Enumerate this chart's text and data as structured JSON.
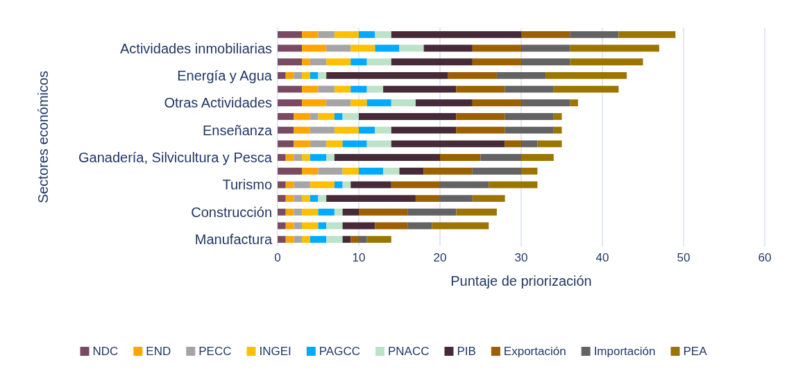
{
  "chart_data": {
    "type": "bar",
    "orientation": "horizontal",
    "stacked": true,
    "xlabel": "Puntaje de priorización",
    "ylabel": "Sectores económicos",
    "categories": [
      null,
      "Actividades inmobiliarias",
      null,
      "Energía y Agua",
      null,
      "Otras Actividades",
      null,
      "Enseñanza",
      null,
      "Ganadería, Silvicultura y Pesca",
      null,
      "Turismo",
      null,
      "Construcción",
      null,
      "Manufactura"
    ],
    "series": [
      {
        "name": "NDC",
        "color": "#7a4a62",
        "values": [
          3,
          3,
          3,
          1,
          3,
          3,
          2,
          2,
          2,
          1,
          3,
          1,
          1,
          1,
          1,
          1
        ]
      },
      {
        "name": "END",
        "color": "#ffa500",
        "values": [
          2,
          3,
          1,
          1,
          2,
          3,
          2,
          2,
          2,
          1,
          2,
          1,
          1,
          1,
          1,
          1
        ]
      },
      {
        "name": "PECC",
        "color": "#a5a5a5",
        "values": [
          2,
          3,
          2,
          1,
          2,
          3,
          1,
          3,
          2,
          1,
          3,
          2,
          1,
          1,
          1,
          1
        ]
      },
      {
        "name": "INGEI",
        "color": "#ffc000",
        "values": [
          3,
          3,
          3,
          1,
          2,
          2,
          2,
          3,
          2,
          1,
          2,
          3,
          1,
          2,
          2,
          1
        ]
      },
      {
        "name": "PAGCC",
        "color": "#00aaff",
        "values": [
          2,
          3,
          2,
          1,
          2,
          3,
          1,
          2,
          3,
          2,
          3,
          1,
          1,
          2,
          1,
          2
        ]
      },
      {
        "name": "PNACC",
        "color": "#bce3c8",
        "values": [
          2,
          3,
          3,
          1,
          2,
          3,
          2,
          2,
          3,
          1,
          2,
          1,
          1,
          1,
          2,
          2
        ]
      },
      {
        "name": "PIB",
        "color": "#472a38",
        "values": [
          16,
          6,
          10,
          15,
          9,
          7,
          12,
          8,
          14,
          13,
          3,
          5,
          11,
          2,
          4,
          1
        ]
      },
      {
        "name": "Exportación",
        "color": "#9c6000",
        "values": [
          6,
          6,
          6,
          6,
          6,
          6,
          6,
          6,
          2,
          5,
          6,
          6,
          3,
          6,
          4,
          1
        ]
      },
      {
        "name": "Importación",
        "color": "#636363",
        "values": [
          6,
          6,
          6,
          6,
          6,
          6,
          6,
          6,
          2,
          5,
          6,
          6,
          4,
          6,
          3,
          1
        ]
      },
      {
        "name": "PEA",
        "color": "#9c7500",
        "values": [
          7,
          11,
          9,
          10,
          8,
          1,
          1,
          1,
          3,
          4,
          2,
          6,
          4,
          5,
          7,
          3
        ]
      }
    ],
    "xlim": [
      0,
      60
    ],
    "xticks": [
      0,
      10,
      20,
      30,
      40,
      50,
      60
    ],
    "grid": "x",
    "legend": "bottom"
  }
}
